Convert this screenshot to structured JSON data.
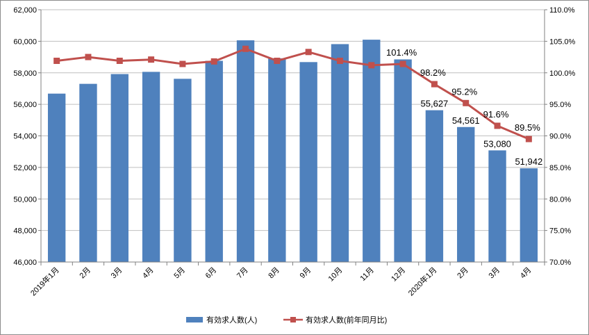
{
  "chart_data": {
    "type": "bar",
    "categories": [
      "2019年1月",
      "2月",
      "3月",
      "4月",
      "5月",
      "6月",
      "7月",
      "8月",
      "9月",
      "10月",
      "11月",
      "12月",
      "2020年1月",
      "2月",
      "3月",
      "4月"
    ],
    "series": [
      {
        "name": "有効求人数(人)",
        "type": "bar",
        "axis": "left",
        "color": "#4f81bd",
        "values": [
          56680,
          57300,
          57920,
          58060,
          57620,
          58760,
          60060,
          58920,
          58680,
          59820,
          60100,
          58850,
          55627,
          54561,
          53080,
          51942
        ],
        "data_labels": [
          "",
          "",
          "",
          "",
          "",
          "",
          "",
          "",
          "",
          "",
          "",
          "",
          "55,627",
          "54,561",
          "53,080",
          "51,942"
        ]
      },
      {
        "name": "有効求人数(前年同月比)",
        "type": "line",
        "axis": "right",
        "color": "#c0504d",
        "values": [
          101.9,
          102.5,
          101.9,
          102.1,
          101.4,
          101.8,
          103.8,
          101.9,
          103.3,
          101.9,
          101.2,
          101.4,
          98.2,
          95.2,
          91.6,
          89.5
        ],
        "data_labels": [
          "",
          "",
          "",
          "",
          "",
          "",
          "",
          "",
          "",
          "",
          "",
          "101.4%",
          "98.2%",
          "95.2%",
          "91.6%",
          "89.5%"
        ]
      }
    ],
    "y_left": {
      "lim": [
        46000,
        62000
      ],
      "ticks": [
        "46,000",
        "48,000",
        "50,000",
        "52,000",
        "54,000",
        "56,000",
        "58,000",
        "60,000",
        "62,000"
      ]
    },
    "y_right": {
      "lim": [
        70,
        110
      ],
      "ticks": [
        "70.0%",
        "75.0%",
        "80.0%",
        "85.0%",
        "90.0%",
        "95.0%",
        "100.0%",
        "105.0%",
        "110.0%"
      ]
    },
    "grid": true,
    "legend_position": "bottom"
  }
}
